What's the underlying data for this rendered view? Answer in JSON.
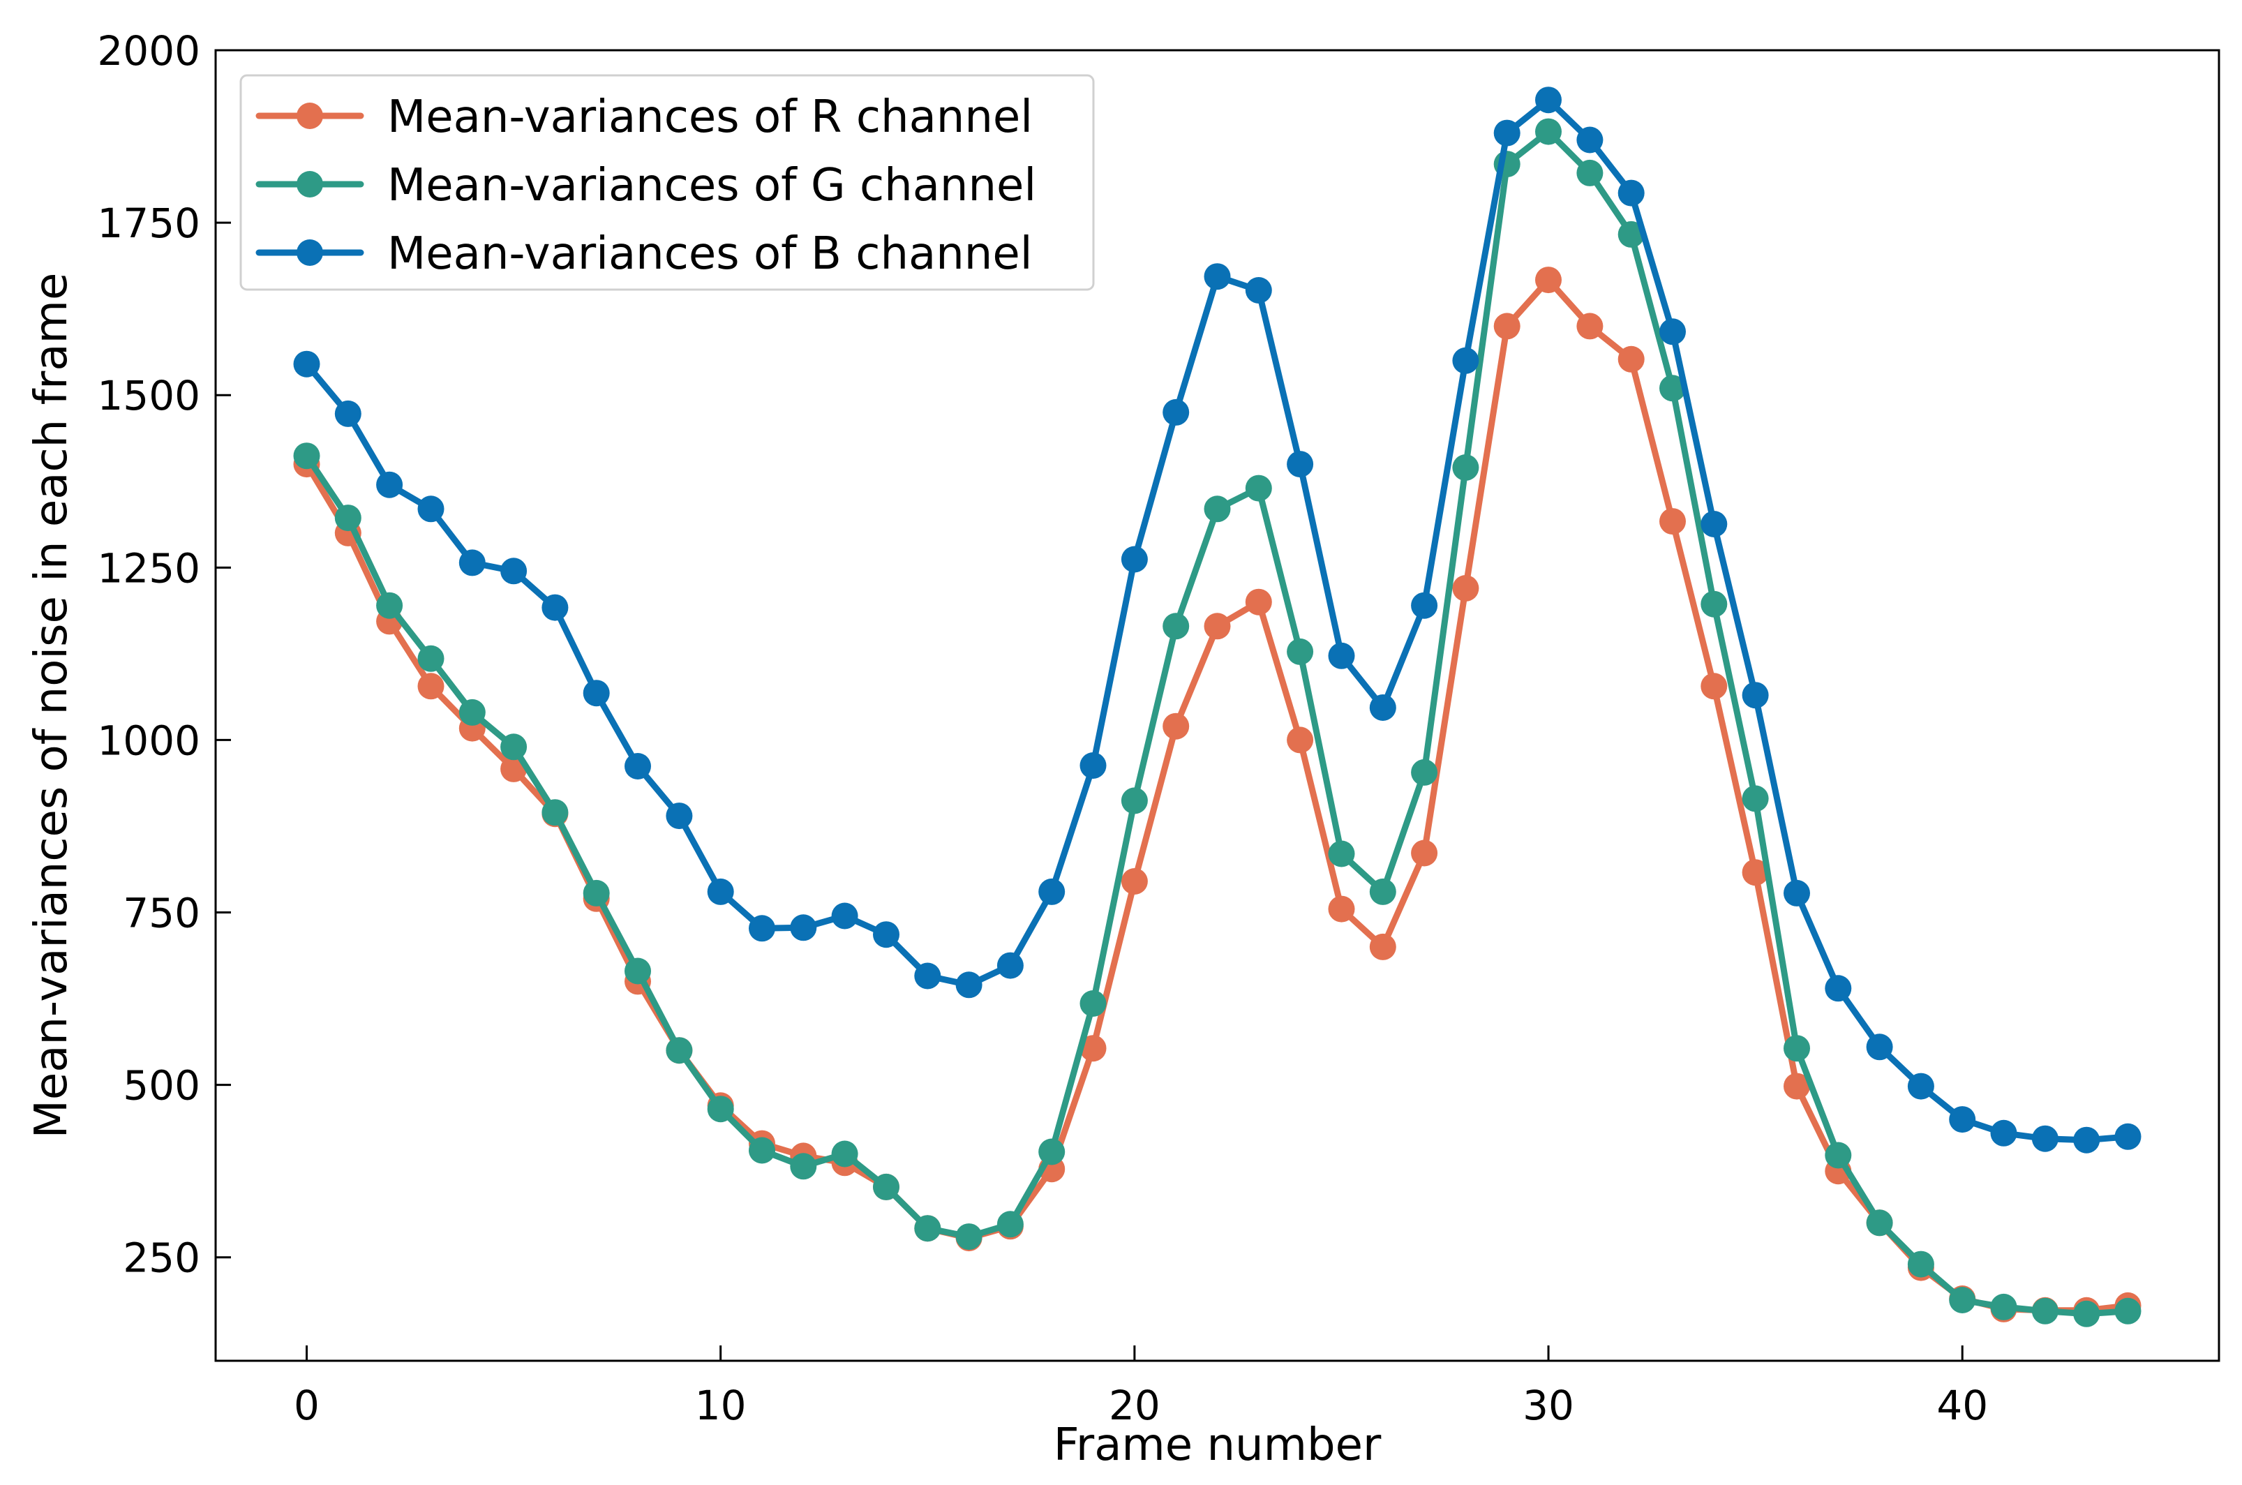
{
  "chart_data": {
    "type": "line",
    "title": "",
    "xlabel": "Frame number",
    "ylabel": "Mean-variances of noise in each frame",
    "xlim": [
      -2.2,
      46.2
    ],
    "ylim": [
      100,
      2000
    ],
    "xticks": [
      0,
      10,
      20,
      30,
      40
    ],
    "xtick_labels": [
      "0",
      "10",
      "20",
      "30",
      "40"
    ],
    "yticks": [
      250,
      500,
      750,
      1000,
      1250,
      1500,
      1750,
      2000
    ],
    "ytick_labels": [
      "250",
      "500",
      "750",
      "1000",
      "1250",
      "1500",
      "1750",
      "2000"
    ],
    "legend_position": "top-left",
    "grid": false,
    "x": [
      0,
      1,
      2,
      3,
      4,
      5,
      6,
      7,
      8,
      9,
      10,
      11,
      12,
      13,
      14,
      15,
      16,
      17,
      18,
      19,
      20,
      21,
      22,
      23,
      24,
      25,
      26,
      27,
      28,
      29,
      30,
      31,
      32,
      33,
      34,
      35,
      36,
      37,
      38,
      39,
      40,
      41,
      42,
      43,
      44
    ],
    "series": [
      {
        "name": "Mean-variances of R channel",
        "color": "#E3704F",
        "values": [
          1400,
          1300,
          1172,
          1078,
          1017,
          958,
          893,
          770,
          650,
          550,
          470,
          415,
          397,
          387,
          352,
          292,
          278,
          295,
          378,
          553,
          795,
          1020,
          1165,
          1200,
          1000,
          755,
          700,
          836,
          1220,
          1600,
          1667,
          1600,
          1552,
          1317,
          1078,
          808,
          498,
          375,
          300,
          235,
          190,
          175,
          173,
          173,
          180
        ]
      },
      {
        "name": "Mean-variances of G channel",
        "color": "#2E9A86",
        "values": [
          1412,
          1322,
          1195,
          1118,
          1040,
          990,
          895,
          778,
          665,
          550,
          465,
          405,
          382,
          400,
          352,
          292,
          280,
          298,
          403,
          618,
          912,
          1165,
          1335,
          1365,
          1128,
          835,
          780,
          953,
          1395,
          1835,
          1882,
          1822,
          1733,
          1510,
          1197,
          915,
          553,
          398,
          300,
          240,
          188,
          178,
          172,
          168,
          172
        ]
      },
      {
        "name": "Mean-variances of B channel",
        "color": "#0A71B5",
        "values": [
          1545,
          1473,
          1370,
          1335,
          1257,
          1245,
          1192,
          1068,
          962,
          890,
          780,
          727,
          728,
          745,
          718,
          658,
          645,
          673,
          780,
          963,
          1262,
          1475,
          1672,
          1652,
          1400,
          1122,
          1047,
          1195,
          1550,
          1880,
          1928,
          1870,
          1793,
          1592,
          1313,
          1065,
          778,
          640,
          555,
          498,
          450,
          430,
          422,
          420,
          425
        ]
      }
    ]
  }
}
